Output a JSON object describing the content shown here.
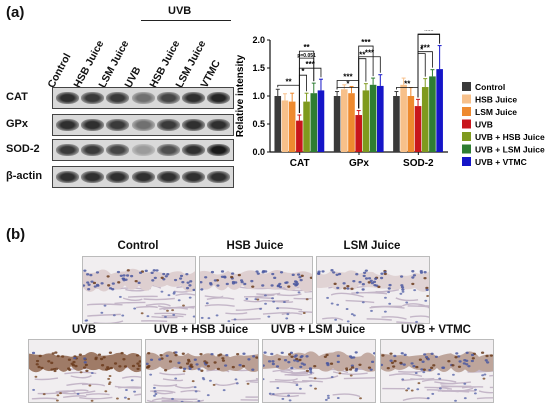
{
  "panel_a_label": "(a)",
  "panel_b_label": "(b)",
  "uvb_group_label": "UVB",
  "lanes": [
    "Control",
    "HSB Juice",
    "LSM Juice",
    "UVB",
    "HSB Juice",
    "LSM Juice",
    "VTMC"
  ],
  "blot_rows": [
    {
      "label": "CAT",
      "intensity": [
        0.85,
        0.8,
        0.8,
        0.55,
        0.75,
        0.85,
        0.9
      ]
    },
    {
      "label": "GPx",
      "intensity": [
        0.85,
        0.85,
        0.8,
        0.55,
        0.8,
        0.85,
        0.85
      ]
    },
    {
      "label": "SOD-2",
      "intensity": [
        0.8,
        0.8,
        0.75,
        0.35,
        0.7,
        0.85,
        0.95
      ]
    },
    {
      "label": "β-actin",
      "intensity": [
        0.85,
        0.85,
        0.85,
        0.85,
        0.85,
        0.85,
        0.85
      ]
    }
  ],
  "chart_data": {
    "type": "bar",
    "ylabel": "Relative intensity",
    "ylim": [
      0,
      2.0
    ],
    "yticks": [
      "0.0",
      "0.5",
      "1.0",
      "1.5",
      "2.0"
    ],
    "categories": [
      "CAT",
      "GPx",
      "SOD-2"
    ],
    "grid": false,
    "legend_position": "right",
    "series": [
      {
        "name": "Control",
        "color": "#3a3a3a",
        "values": [
          1.0,
          1.0,
          1.0
        ],
        "errors": [
          0.12,
          0.08,
          0.08
        ]
      },
      {
        "name": "HSB Juice",
        "color": "#f7c08a",
        "values": [
          0.92,
          1.12,
          1.2
        ],
        "errors": [
          0.12,
          0.08,
          0.12
        ]
      },
      {
        "name": "LSM Juice",
        "color": "#ee8a2f",
        "values": [
          0.9,
          1.05,
          1.0
        ],
        "errors": [
          0.15,
          0.12,
          0.15
        ]
      },
      {
        "name": "UVB",
        "color": "#c8151b",
        "values": [
          0.56,
          0.66,
          0.82
        ],
        "errors": [
          0.1,
          0.08,
          0.12
        ]
      },
      {
        "name": "UVB + HSB Juice",
        "color": "#7f9a1e",
        "values": [
          0.9,
          1.1,
          1.16
        ],
        "errors": [
          0.15,
          0.12,
          0.15
        ]
      },
      {
        "name": "UVB + LSM Juice",
        "color": "#2e7d32",
        "values": [
          1.05,
          1.2,
          1.35
        ],
        "errors": [
          0.18,
          0.12,
          0.12
        ]
      },
      {
        "name": "UVB + VTMC",
        "color": "#1515c8",
        "values": [
          1.1,
          1.18,
          1.48
        ],
        "errors": [
          0.2,
          0.2,
          0.42
        ]
      }
    ],
    "annotations": [
      "**",
      "***",
      "*",
      "p=0.051",
      "**",
      "*",
      "***",
      "***",
      "**",
      "**",
      "***",
      "***",
      "*",
      "***",
      "***"
    ]
  },
  "histology": [
    {
      "title": "Control",
      "stain": 0.15
    },
    {
      "title": "HSB Juice",
      "stain": 0.15
    },
    {
      "title": "LSM Juice",
      "stain": 0.12
    },
    {
      "title": "UVB",
      "stain": 0.85
    },
    {
      "title": "UVB + HSB Juice",
      "stain": 0.55
    },
    {
      "title": "UVB + LSM Juice",
      "stain": 0.45
    },
    {
      "title": "UVB + VTMC",
      "stain": 0.5
    }
  ]
}
